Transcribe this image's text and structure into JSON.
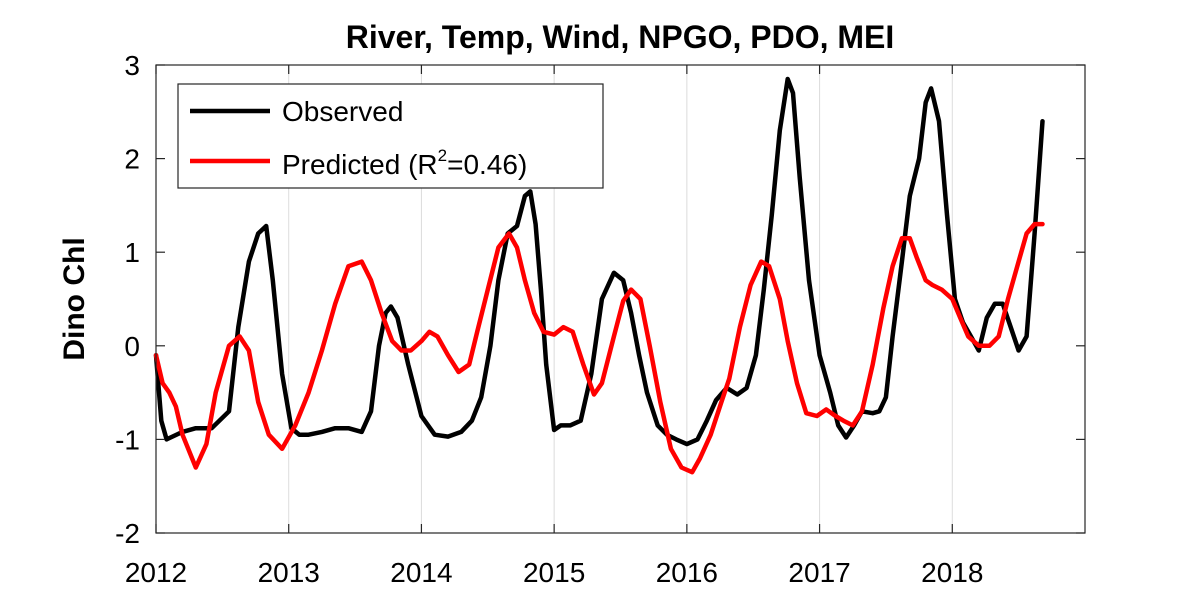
{
  "chart_data": {
    "type": "line",
    "title": "River, Temp, Wind, NPGO, PDO, MEI",
    "xlabel": "",
    "ylabel": "Dino Chl",
    "xlim": [
      2012,
      2019
    ],
    "ylim": [
      -2,
      3
    ],
    "x_ticks": [
      "2012",
      "2013",
      "2014",
      "2015",
      "2016",
      "2017",
      "2018"
    ],
    "y_ticks": [
      "-2",
      "-1",
      "0",
      "1",
      "2",
      "3"
    ],
    "grid": "vertical",
    "legend": {
      "location": "top-left",
      "observed": "Observed",
      "predicted_prefix": "Predicted (R",
      "predicted_sup": "2",
      "predicted_suffix": "=0.46)"
    },
    "series": [
      {
        "name": "Observed",
        "color": "#000000",
        "x": [
          2012.0,
          2012.04,
          2012.08,
          2012.2,
          2012.3,
          2012.42,
          2012.55,
          2012.62,
          2012.7,
          2012.77,
          2012.83,
          2012.88,
          2012.95,
          2013.02,
          2013.08,
          2013.15,
          2013.25,
          2013.35,
          2013.45,
          2013.55,
          2013.62,
          2013.68,
          2013.73,
          2013.77,
          2013.82,
          2013.9,
          2014.0,
          2014.1,
          2014.2,
          2014.3,
          2014.38,
          2014.45,
          2014.52,
          2014.58,
          2014.65,
          2014.72,
          2014.78,
          2014.82,
          2014.86,
          2014.9,
          2014.94,
          2015.0,
          2015.05,
          2015.12,
          2015.2,
          2015.28,
          2015.36,
          2015.45,
          2015.52,
          2015.58,
          2015.64,
          2015.7,
          2015.78,
          2015.85,
          2015.92,
          2016.0,
          2016.08,
          2016.15,
          2016.22,
          2016.3,
          2016.38,
          2016.45,
          2016.52,
          2016.58,
          2016.64,
          2016.7,
          2016.76,
          2016.8,
          2016.85,
          2016.92,
          2017.0,
          2017.08,
          2017.14,
          2017.2,
          2017.26,
          2017.32,
          2017.4,
          2017.45,
          2017.5,
          2017.55,
          2017.62,
          2017.68,
          2017.75,
          2017.8,
          2017.84,
          2017.9,
          2017.96,
          2018.02,
          2018.08,
          2018.14,
          2018.2,
          2018.26,
          2018.32,
          2018.38,
          2018.44,
          2018.5,
          2018.56,
          2018.62,
          2018.68
        ],
        "y": [
          -0.1,
          -0.8,
          -1.0,
          -0.92,
          -0.88,
          -0.88,
          -0.7,
          0.2,
          0.9,
          1.2,
          1.28,
          0.7,
          -0.3,
          -0.88,
          -0.95,
          -0.95,
          -0.92,
          -0.88,
          -0.88,
          -0.92,
          -0.7,
          0.0,
          0.35,
          0.42,
          0.3,
          -0.2,
          -0.75,
          -0.95,
          -0.97,
          -0.92,
          -0.8,
          -0.55,
          0.0,
          0.7,
          1.2,
          1.28,
          1.6,
          1.65,
          1.3,
          0.6,
          -0.2,
          -0.9,
          -0.85,
          -0.85,
          -0.8,
          -0.3,
          0.5,
          0.78,
          0.7,
          0.35,
          -0.1,
          -0.5,
          -0.85,
          -0.95,
          -1.0,
          -1.05,
          -1.0,
          -0.8,
          -0.58,
          -0.45,
          -0.52,
          -0.45,
          -0.1,
          0.6,
          1.4,
          2.3,
          2.85,
          2.7,
          1.8,
          0.7,
          -0.1,
          -0.5,
          -0.85,
          -0.98,
          -0.85,
          -0.7,
          -0.72,
          -0.7,
          -0.55,
          0.1,
          0.9,
          1.6,
          2.0,
          2.6,
          2.75,
          2.4,
          1.4,
          0.5,
          0.25,
          0.1,
          -0.05,
          0.3,
          0.45,
          0.45,
          0.2,
          -0.05,
          0.1,
          1.2,
          2.4
        ]
      },
      {
        "name": "Predicted (R2=0.46)",
        "color": "#ff0000",
        "x": [
          2012.0,
          2012.05,
          2012.1,
          2012.15,
          2012.2,
          2012.3,
          2012.38,
          2012.45,
          2012.55,
          2012.63,
          2012.7,
          2012.77,
          2012.85,
          2012.95,
          2013.05,
          2013.15,
          2013.25,
          2013.35,
          2013.45,
          2013.55,
          2013.62,
          2013.7,
          2013.78,
          2013.85,
          2013.92,
          2014.0,
          2014.06,
          2014.12,
          2014.2,
          2014.28,
          2014.36,
          2014.42,
          2014.5,
          2014.58,
          2014.66,
          2014.72,
          2014.78,
          2014.85,
          2014.92,
          2015.0,
          2015.07,
          2015.14,
          2015.22,
          2015.3,
          2015.36,
          2015.45,
          2015.52,
          2015.58,
          2015.65,
          2015.72,
          2015.8,
          2015.88,
          2015.96,
          2016.04,
          2016.1,
          2016.18,
          2016.26,
          2016.32,
          2016.4,
          2016.48,
          2016.56,
          2016.62,
          2016.7,
          2016.76,
          2016.83,
          2016.9,
          2016.98,
          2017.05,
          2017.12,
          2017.18,
          2017.25,
          2017.32,
          2017.4,
          2017.48,
          2017.55,
          2017.62,
          2017.68,
          2017.73,
          2017.8,
          2017.85,
          2017.92,
          2018.0,
          2018.06,
          2018.12,
          2018.2,
          2018.28,
          2018.35,
          2018.42,
          2018.5,
          2018.56,
          2018.62,
          2018.68
        ],
        "y": [
          -0.1,
          -0.4,
          -0.5,
          -0.65,
          -0.95,
          -1.3,
          -1.05,
          -0.5,
          0.0,
          0.1,
          -0.05,
          -0.6,
          -0.95,
          -1.1,
          -0.85,
          -0.5,
          -0.05,
          0.45,
          0.85,
          0.9,
          0.7,
          0.35,
          0.05,
          -0.05,
          -0.05,
          0.05,
          0.15,
          0.1,
          -0.1,
          -0.28,
          -0.2,
          0.15,
          0.6,
          1.05,
          1.2,
          1.05,
          0.7,
          0.35,
          0.15,
          0.12,
          0.2,
          0.15,
          -0.2,
          -0.52,
          -0.4,
          0.1,
          0.48,
          0.6,
          0.5,
          0.0,
          -0.6,
          -1.1,
          -1.3,
          -1.35,
          -1.2,
          -0.95,
          -0.6,
          -0.35,
          0.2,
          0.65,
          0.9,
          0.85,
          0.5,
          0.05,
          -0.4,
          -0.72,
          -0.75,
          -0.68,
          -0.75,
          -0.8,
          -0.85,
          -0.7,
          -0.2,
          0.4,
          0.85,
          1.15,
          1.15,
          0.95,
          0.7,
          0.65,
          0.6,
          0.5,
          0.3,
          0.1,
          0.0,
          0.0,
          0.1,
          0.5,
          0.9,
          1.2,
          1.3,
          1.3
        ]
      }
    ]
  }
}
